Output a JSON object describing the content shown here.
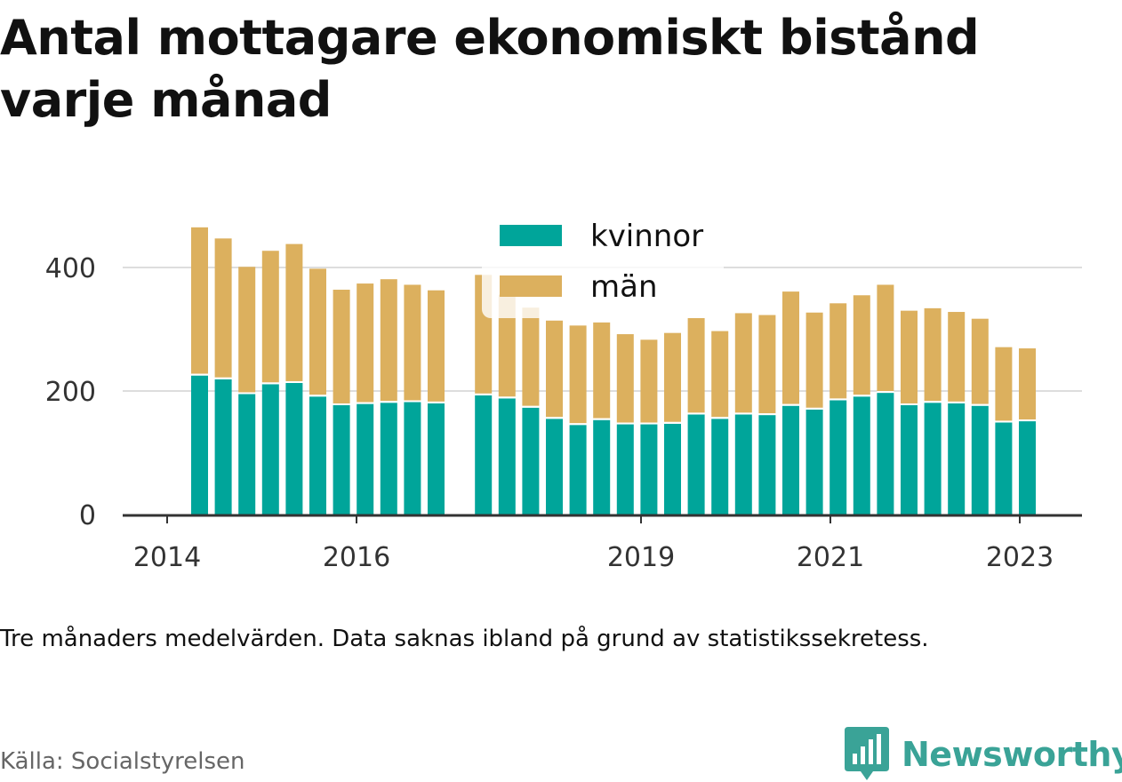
{
  "title": "Antal mottagare ekonomiskt bistånd varje månad",
  "note": "Tre månaders medelvärden. Data saknas ibland på grund av statistikssekretess.",
  "source": "Källa: Socialstyrelsen",
  "brand": {
    "name": "Newsworthy",
    "icon": "newsworthy-chart-bubble-icon",
    "color": "#3aa397"
  },
  "colors": {
    "kvinnor": "#00a59a",
    "man": "#dcb05e",
    "grid": "#dddddd",
    "axis": "#333333"
  },
  "chart_data": {
    "type": "bar",
    "stacked": true,
    "title": "Antal mottagare ekonomiskt bistånd varje månad",
    "xlabel": "",
    "ylabel": "",
    "x_ticks": [
      "2014",
      "2016",
      "2019",
      "2021",
      "2023"
    ],
    "y_ticks": [
      0,
      200,
      400
    ],
    "ylim": [
      0,
      480
    ],
    "grid": true,
    "legend_position": "top-center",
    "series": [
      {
        "name": "kvinnor",
        "color": "#00a59a",
        "values": [
          225,
          219,
          195,
          211,
          213,
          191,
          177,
          179,
          181,
          182,
          180,
          null,
          193,
          188,
          173,
          155,
          145,
          153,
          146,
          146,
          147,
          162,
          155,
          162,
          161,
          176,
          170,
          185,
          191,
          197,
          177,
          181,
          180,
          176,
          149,
          151
        ]
      },
      {
        "name": "män",
        "color": "#dcb05e",
        "values": [
          240,
          228,
          206,
          216,
          225,
          207,
          187,
          195,
          200,
          190,
          183,
          null,
          195,
          168,
          162,
          159,
          161,
          158,
          146,
          137,
          147,
          156,
          142,
          164,
          162,
          185,
          157,
          157,
          164,
          175,
          153,
          153,
          148,
          141,
          122,
          118
        ]
      }
    ]
  }
}
